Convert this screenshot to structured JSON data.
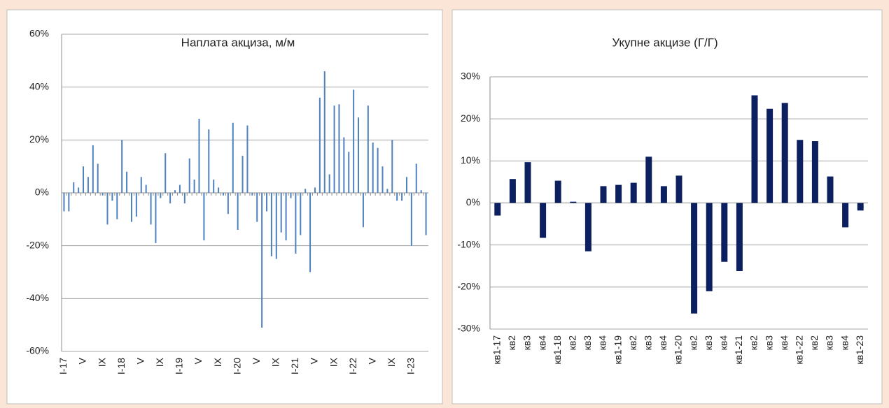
{
  "chart_data": [
    {
      "type": "bar",
      "title": "Наплата акциза, м/м",
      "color": "#4f81bd",
      "grid": true,
      "categories": [
        "I-17",
        null,
        null,
        null,
        "V",
        null,
        null,
        null,
        "IX",
        null,
        null,
        null,
        "I-18",
        null,
        null,
        null,
        "V",
        null,
        null,
        null,
        "IX",
        null,
        null,
        null,
        "I-19",
        null,
        null,
        null,
        "V",
        null,
        null,
        null,
        "IX",
        null,
        null,
        null,
        "I-20",
        null,
        null,
        null,
        "V",
        null,
        null,
        null,
        "IX",
        null,
        null,
        null,
        "I-21",
        null,
        null,
        null,
        "V",
        null,
        null,
        null,
        "IX",
        null,
        null,
        null,
        "I-22",
        null,
        null,
        null,
        "V",
        null,
        null,
        null,
        "IX",
        null,
        null,
        null,
        "I-23",
        null,
        null,
        null
      ],
      "values": [
        -7,
        -7,
        4,
        2,
        10,
        6,
        18,
        11,
        -1,
        -12,
        -3,
        -10,
        20,
        8,
        -11,
        -9,
        6,
        3,
        -12,
        -19,
        -2,
        15,
        -4,
        1,
        3,
        -4,
        13,
        5,
        28,
        -18,
        24,
        5,
        2,
        -1,
        -8,
        26.5,
        -14,
        14,
        25.5,
        -1,
        -11,
        -51,
        -7,
        -24,
        -25,
        -15,
        -18,
        -2,
        -23,
        -16,
        1.5,
        -30,
        2,
        36,
        46,
        7,
        33,
        33.5,
        21,
        15.5,
        39,
        28.5,
        -13,
        33,
        19,
        17,
        10,
        1.5,
        20,
        -3,
        -3,
        6,
        -20,
        11,
        1,
        -16
      ],
      "ylim": [
        -60,
        60
      ],
      "yticks": [
        {
          "value": -60,
          "label": "-60%"
        },
        {
          "value": -40,
          "label": "-40%"
        },
        {
          "value": -20,
          "label": "-20%"
        },
        {
          "value": 0,
          "label": "0%"
        },
        {
          "value": 20,
          "label": "20%"
        },
        {
          "value": 40,
          "label": "40%"
        },
        {
          "value": 60,
          "label": "60%"
        }
      ]
    },
    {
      "type": "bar",
      "title": "Укупне акцизе (Г/Г)",
      "color": "#0c1f5e",
      "grid": true,
      "categories": [
        "кв1-17",
        "кв2",
        "кв3",
        "кв4",
        "кв1-18",
        "кв2",
        "кв3",
        "кв4",
        "кв1-19",
        "кв2",
        "кв3",
        "кв4",
        "кв1-20",
        "кв2",
        "кв3",
        "кв4",
        "кв1-21",
        "кв2",
        "кв3",
        "кв4",
        "кв1-22",
        "кв2",
        "кв3",
        "кв4",
        "кв1-23"
      ],
      "values": [
        -3,
        5.7,
        9.7,
        -8.3,
        5.3,
        0.3,
        -11.5,
        4,
        4.3,
        4.8,
        11,
        4,
        6.5,
        -26.3,
        -21,
        -14,
        -16.2,
        25.6,
        22.4,
        23.8,
        15,
        14.7,
        6.3,
        -5.8,
        -1.8
      ],
      "ylim": [
        -30,
        30
      ],
      "yticks": [
        {
          "value": -30,
          "label": "-30%"
        },
        {
          "value": -20,
          "label": "-20%"
        },
        {
          "value": -10,
          "label": "-10%"
        },
        {
          "value": 0,
          "label": "0%"
        },
        {
          "value": 10,
          "label": "10%"
        },
        {
          "value": 20,
          "label": "20%"
        },
        {
          "value": 30,
          "label": "30%"
        }
      ]
    }
  ]
}
